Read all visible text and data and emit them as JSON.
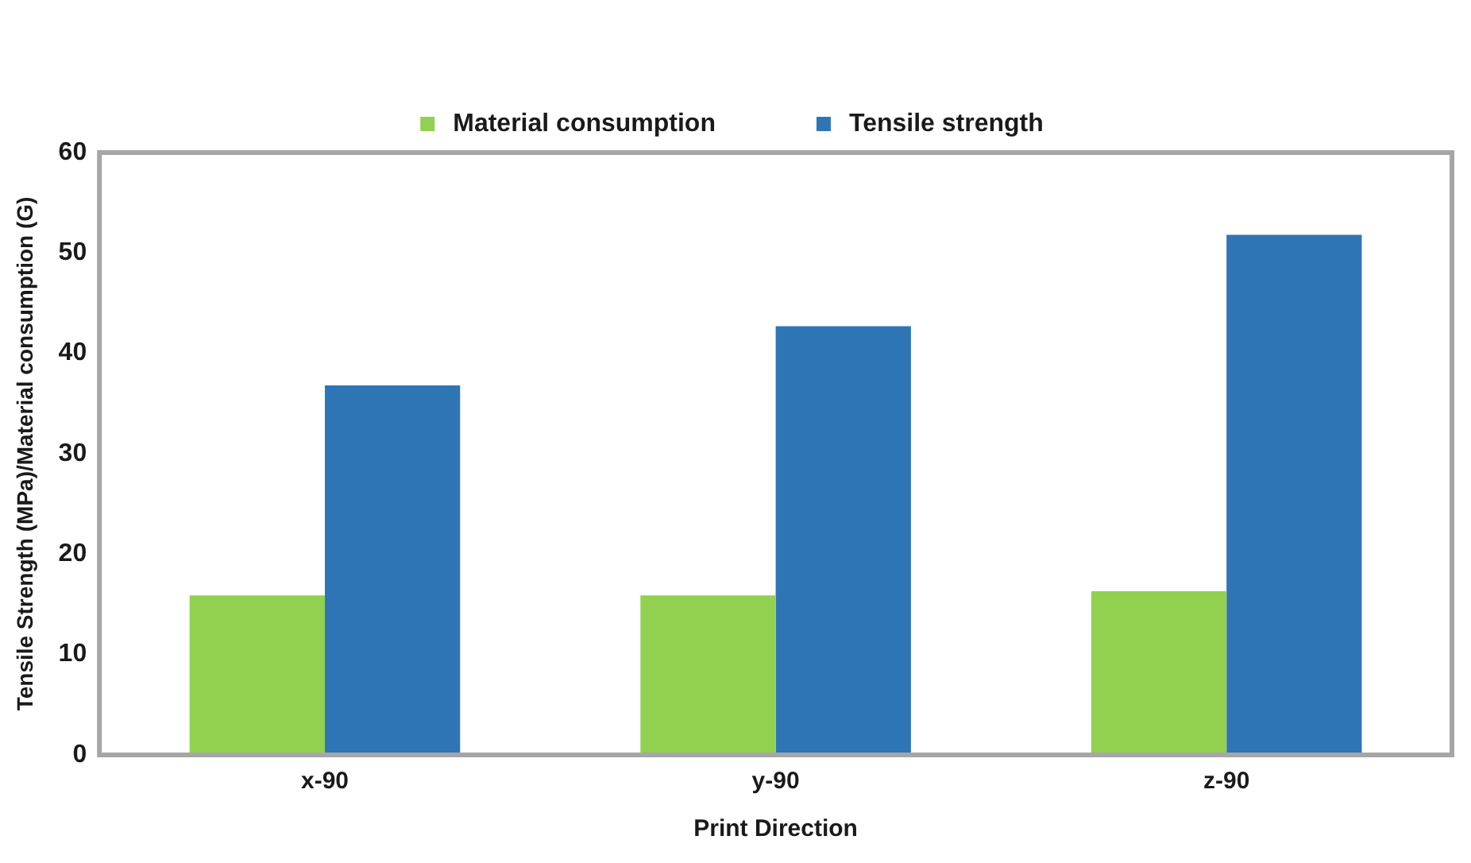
{
  "chart_data": {
    "type": "bar",
    "xlabel": "Print Direction",
    "ylabel": "Tensile Strength (MPa)/Material consumption (G)",
    "categories": [
      "x-90",
      "y-90",
      "z-90"
    ],
    "series": [
      {
        "name": "Material consumption",
        "color": "#92d050",
        "values": [
          15.9,
          15.9,
          16.3
        ]
      },
      {
        "name": "Tensile strength",
        "color": "#2e75b6",
        "values": [
          36.8,
          42.7,
          51.8
        ]
      }
    ],
    "ylim": [
      0,
      60
    ],
    "yticks": [
      0,
      10,
      20,
      30,
      40,
      50,
      60
    ],
    "grid": false,
    "legend": "top",
    "marker": "square"
  }
}
